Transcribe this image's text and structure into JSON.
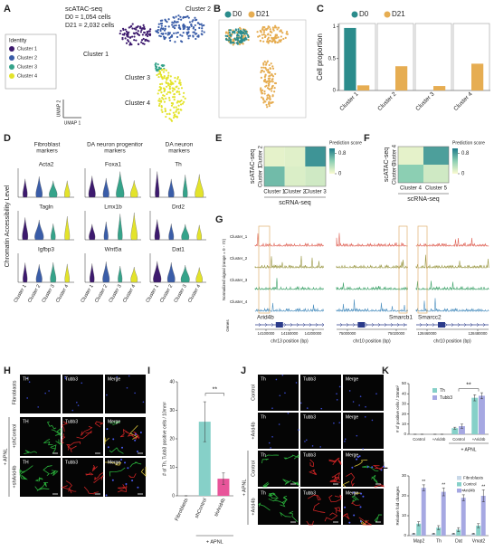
{
  "panels": {
    "labels": [
      "A",
      "B",
      "C",
      "D",
      "E",
      "F",
      "G",
      "H",
      "I",
      "J",
      "K",
      "L"
    ],
    "a": {
      "title": "scATAC-seq",
      "d0": "D0 = 1,054 cells",
      "d21": "D21 = 2,032 cells",
      "legend_title": "Identity",
      "clusters": [
        {
          "name": "Cluster 1",
          "color": "#3d1a6e"
        },
        {
          "name": "Cluster 2",
          "color": "#3a5da8"
        },
        {
          "name": "Cluster 3",
          "color": "#35a38a"
        },
        {
          "name": "Cluster 4",
          "color": "#e3e32b"
        }
      ],
      "cluster_labels": [
        "Cluster 2",
        "Cluster 1",
        "Cluster 3",
        "Cluster 4"
      ],
      "y_label": "UMAP 2",
      "x_label": "UMAP 1"
    },
    "b": {
      "legend": [
        {
          "name": "D0",
          "color": "#2b8c8c"
        },
        {
          "name": "D21",
          "color": "#e6ad52"
        }
      ]
    },
    "d": {
      "groups": [
        [
          "Fibroblast",
          "markers"
        ],
        [
          "DA neuron progenitor",
          "markers"
        ],
        [
          "DA neuron",
          "markers"
        ]
      ],
      "genes": [
        "Acta2",
        "Foxa1",
        "Th",
        "Tagln",
        "Lmx1b",
        "Drd2",
        "Igfbp3",
        "Wnt5a",
        "Dat1"
      ],
      "y_label": "Chromatin Accessibility Level",
      "categories": [
        "Cluster 1",
        "Cluster 2",
        "Cluster 3",
        "Cluster 4"
      ]
    },
    "g": {
      "tracks": [
        {
          "name": "Cluster_1",
          "color": "#e0665a"
        },
        {
          "name": "Cluster_2",
          "color": "#9c9a48"
        },
        {
          "name": "Cluster_3",
          "color": "#3fa36b"
        },
        {
          "name": "Cluster_4",
          "color": "#4c8fbf"
        }
      ],
      "y_label": "Normalized signal (range = 0 - 72)",
      "genes_label": "Genes",
      "regions": [
        {
          "gene": "Arid4b",
          "ticks": [
            "14100000",
            "14150000",
            "14200000"
          ],
          "axis": "chr13 position (bp)"
        },
        {
          "gene": "Smarcb1",
          "ticks": [
            "75000000",
            "75020000"
          ],
          "axis": "chr10 position (bp)"
        },
        {
          "gene": "Smarcc2",
          "ticks": [
            "128460000",
            "128480000"
          ],
          "axis": "chr10 position (bp)"
        }
      ]
    },
    "h": {
      "columns": [
        "TH",
        "Tubb3",
        "Merge"
      ],
      "rows": [
        "Fibroblasts",
        "+shControl",
        "+shArid4b"
      ],
      "group": "+ APNL"
    },
    "j": {
      "columns": [
        "Th",
        "Tubb3",
        "Merge"
      ],
      "rows": [
        "Control",
        "+Arid4b",
        "Control",
        "+Arid4b"
      ],
      "group": "+ APNL"
    }
  },
  "chart_data": [
    {
      "type": "bar",
      "categories": [
        "Cluster 1",
        "Cluster 2",
        "Cluster 3",
        "Cluster 4"
      ],
      "series": [
        {
          "name": "D0",
          "color": "#2b8c8c",
          "values": [
            0.98,
            0,
            0,
            0
          ]
        },
        {
          "name": "D21",
          "color": "#e6ad52",
          "values": [
            0.08,
            0.38,
            0.07,
            0.42
          ]
        }
      ],
      "y_label": "Cell proportion",
      "ylim": [
        0,
        1.05
      ],
      "yticks": [
        0,
        0.5,
        1
      ]
    },
    {
      "type": "heatmap",
      "rows": [
        "Cluster 2",
        "Cluster 1"
      ],
      "columns": [
        "Cluster 1",
        "Cluster 2",
        "Cluster 3"
      ],
      "values": [
        [
          0.1,
          0.12,
          0.85
        ],
        [
          0.62,
          0.15,
          0.2
        ]
      ],
      "y_label": "scATAC-seq",
      "x_label": "scRNA-seq",
      "colorbar_label": "Prediction score",
      "clim": [
        0,
        1
      ],
      "cticks": [
        0,
        0.8
      ]
    },
    {
      "type": "heatmap",
      "rows": [
        "Cluster 4",
        "Cluster 3"
      ],
      "columns": [
        "Cluster 4",
        "Cluster 5"
      ],
      "values": [
        [
          0.1,
          0.78
        ],
        [
          0.5,
          0.2
        ]
      ],
      "y_label": "scATAC-seq",
      "x_label": "scRNA-seq",
      "colorbar_label": "Prediction score",
      "clim": [
        0,
        1
      ],
      "cticks": [
        0,
        0.8
      ]
    },
    {
      "type": "bar",
      "categories": [
        "Fibroblasts",
        "shControl",
        "shArid4b"
      ],
      "series": [
        {
          "colors": [
            "#86d0c8",
            "#86d0c8",
            "#e8559a"
          ],
          "values": [
            0,
            26,
            6
          ],
          "errors": [
            0,
            7,
            2
          ]
        }
      ],
      "y_label": "# of Th, Tubb3 positive cells / 10mm²",
      "ylim": [
        0,
        40
      ],
      "yticks": [
        0,
        10,
        20,
        30,
        40
      ],
      "annotations": [
        "**",
        "+ APNL"
      ]
    },
    {
      "type": "bar",
      "categories": [
        "Control",
        "+Arid4b",
        "Control",
        "+Arid4b"
      ],
      "series": [
        {
          "name": "Th",
          "color": "#86d0c8",
          "values": [
            0,
            0,
            6,
            36
          ],
          "errors": [
            0,
            0,
            1,
            3
          ]
        },
        {
          "name": "Tubb3",
          "color": "#a6a8e2",
          "values": [
            0,
            0,
            8,
            38
          ],
          "errors": [
            0,
            0,
            2,
            3
          ]
        }
      ],
      "y_label": "# of positive cells / 10mm²",
      "ylim": [
        0,
        50
      ],
      "yticks": [
        0,
        10,
        20,
        30,
        40,
        50
      ],
      "annotations": [
        "**",
        "+ APNL"
      ]
    },
    {
      "type": "bar",
      "categories": [
        "Map2",
        "Th",
        "Dat",
        "Vmat2"
      ],
      "series": [
        {
          "name": "Fibroblasts",
          "color": "#c8d8e8",
          "values": [
            1,
            1,
            1,
            1
          ],
          "errors": [
            0.2,
            0.2,
            0.2,
            0.2
          ]
        },
        {
          "name": "Control",
          "color": "#86d0c8",
          "values": [
            6,
            4,
            3,
            5
          ],
          "errors": [
            1,
            1,
            1,
            1
          ]
        },
        {
          "name": "Arid4b",
          "color": "#a6a8e2",
          "values": [
            24,
            22,
            19,
            20
          ],
          "errors": [
            1.5,
            2,
            1.5,
            3
          ]
        }
      ],
      "y_label": "Relative fold changes",
      "ylim": [
        0,
        30
      ],
      "yticks": [
        0,
        10,
        20,
        30
      ],
      "annotations": [
        "**",
        "**",
        "**",
        "**"
      ]
    }
  ]
}
